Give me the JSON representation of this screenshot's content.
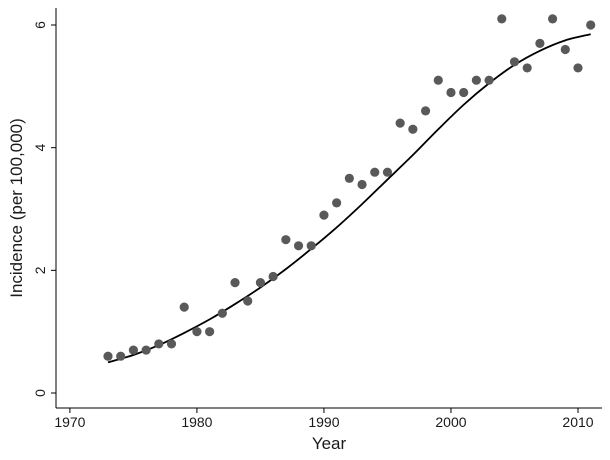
{
  "chart_data": {
    "type": "scatter",
    "title": "",
    "xlabel": "Year",
    "ylabel": "Incidence (per 100,000)",
    "xlim": [
      1970,
      2012
    ],
    "ylim": [
      0,
      6.25
    ],
    "xticks": [
      "1970",
      "1980",
      "1990",
      "2000",
      "2010"
    ],
    "yticks": [
      "0",
      "2",
      "4",
      "6"
    ],
    "grid": false,
    "legend": "none",
    "point_color": "#595959",
    "line_color": "#000000",
    "series": [
      {
        "kind": "points",
        "x": [
          1973,
          1974,
          1975,
          1976,
          1977,
          1978,
          1979,
          1980,
          1981,
          1982,
          1983,
          1984,
          1985,
          1986,
          1987,
          1988,
          1989,
          1990,
          1991,
          1992,
          1993,
          1994,
          1995,
          1996,
          1997,
          1998,
          1999,
          2000,
          2001,
          2002,
          2003,
          2004,
          2005,
          2006,
          2007,
          2008,
          2009,
          2010,
          2011
        ],
        "y": [
          0.6,
          0.6,
          0.7,
          0.7,
          0.8,
          0.8,
          1.4,
          1.0,
          1.0,
          1.3,
          1.8,
          1.5,
          1.8,
          1.9,
          2.5,
          2.4,
          2.4,
          2.9,
          3.1,
          3.5,
          3.4,
          3.6,
          3.6,
          4.4,
          4.3,
          4.6,
          5.1,
          4.9,
          4.9,
          5.1,
          5.1,
          6.1,
          5.4,
          5.3,
          5.7,
          6.1,
          5.6,
          5.3,
          6.0
        ]
      },
      {
        "kind": "fitted-curve",
        "x": [
          1973,
          1975,
          1977,
          1979,
          1981,
          1983,
          1985,
          1987,
          1989,
          1991,
          1993,
          1995,
          1997,
          1999,
          2001,
          2003,
          2005,
          2007,
          2009,
          2011
        ],
        "y": [
          0.5,
          0.62,
          0.78,
          0.98,
          1.2,
          1.45,
          1.72,
          2.02,
          2.35,
          2.7,
          3.08,
          3.48,
          3.88,
          4.3,
          4.7,
          5.05,
          5.35,
          5.58,
          5.75,
          5.85
        ]
      }
    ]
  }
}
